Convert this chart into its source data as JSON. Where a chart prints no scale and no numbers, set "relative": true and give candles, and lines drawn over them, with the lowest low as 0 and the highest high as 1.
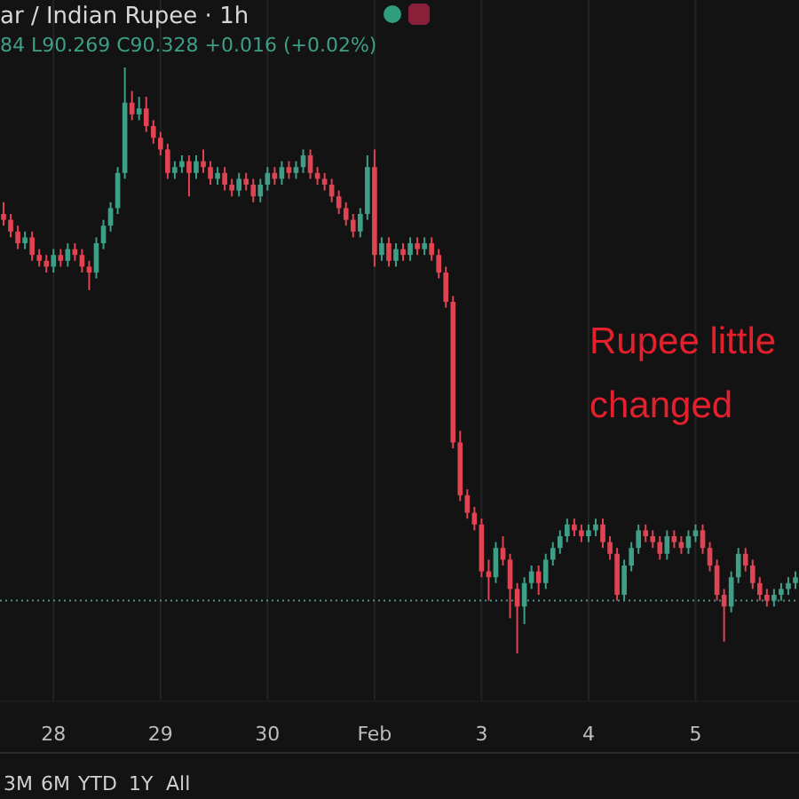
{
  "chart_data": {
    "type": "candlestick",
    "title": "ar / Indian Rupee · 1h",
    "subtitle": "84 L90.269 C90.328 +0.016 (+0.02%)",
    "relative": true,
    "grid": "x",
    "categories": [
      null,
      null,
      null,
      null,
      null,
      null,
      null,
      "28",
      null,
      null,
      null,
      null,
      null,
      null,
      null,
      null,
      null,
      null,
      null,
      null,
      null,
      null,
      "29",
      null,
      null,
      null,
      null,
      null,
      null,
      null,
      null,
      null,
      null,
      null,
      null,
      null,
      null,
      "30",
      null,
      null,
      null,
      null,
      null,
      null,
      null,
      null,
      null,
      null,
      null,
      null,
      null,
      null,
      "Feb",
      null,
      null,
      null,
      null,
      null,
      null,
      null,
      null,
      null,
      null,
      null,
      null,
      null,
      null,
      "3",
      null,
      null,
      null,
      null,
      null,
      null,
      null,
      null,
      null,
      null,
      null,
      null,
      null,
      null,
      "4",
      null,
      null,
      null,
      null,
      null,
      null,
      null,
      null,
      null,
      null,
      null,
      null,
      null,
      null,
      "5",
      null,
      null,
      null,
      null,
      null,
      null,
      null,
      null,
      null,
      null,
      null,
      null,
      null,
      null
    ],
    "ohlc": [
      [
        0.75,
        0.77,
        0.73,
        0.74
      ],
      [
        0.74,
        0.75,
        0.71,
        0.72
      ],
      [
        0.72,
        0.73,
        0.69,
        0.7
      ],
      [
        0.7,
        0.72,
        0.69,
        0.71
      ],
      [
        0.71,
        0.72,
        0.67,
        0.68
      ],
      [
        0.68,
        0.69,
        0.66,
        0.67
      ],
      [
        0.67,
        0.68,
        0.65,
        0.66
      ],
      [
        0.66,
        0.69,
        0.65,
        0.68
      ],
      [
        0.68,
        0.69,
        0.66,
        0.67
      ],
      [
        0.67,
        0.7,
        0.66,
        0.69
      ],
      [
        0.69,
        0.7,
        0.67,
        0.68
      ],
      [
        0.68,
        0.69,
        0.65,
        0.66
      ],
      [
        0.66,
        0.67,
        0.62,
        0.65
      ],
      [
        0.65,
        0.71,
        0.64,
        0.7
      ],
      [
        0.7,
        0.74,
        0.69,
        0.73
      ],
      [
        0.73,
        0.77,
        0.72,
        0.76
      ],
      [
        0.76,
        0.83,
        0.75,
        0.82
      ],
      [
        0.82,
        1.0,
        0.81,
        0.94
      ],
      [
        0.94,
        0.96,
        0.91,
        0.92
      ],
      [
        0.92,
        0.95,
        0.91,
        0.93
      ],
      [
        0.93,
        0.95,
        0.89,
        0.9
      ],
      [
        0.9,
        0.91,
        0.87,
        0.88
      ],
      [
        0.88,
        0.89,
        0.85,
        0.86
      ],
      [
        0.86,
        0.87,
        0.81,
        0.82
      ],
      [
        0.82,
        0.84,
        0.81,
        0.83
      ],
      [
        0.83,
        0.85,
        0.82,
        0.84
      ],
      [
        0.84,
        0.85,
        0.78,
        0.82
      ],
      [
        0.82,
        0.85,
        0.81,
        0.84
      ],
      [
        0.84,
        0.86,
        0.82,
        0.83
      ],
      [
        0.83,
        0.84,
        0.8,
        0.81
      ],
      [
        0.81,
        0.83,
        0.8,
        0.82
      ],
      [
        0.82,
        0.83,
        0.79,
        0.8
      ],
      [
        0.8,
        0.81,
        0.78,
        0.79
      ],
      [
        0.79,
        0.82,
        0.78,
        0.81
      ],
      [
        0.81,
        0.82,
        0.79,
        0.8
      ],
      [
        0.8,
        0.81,
        0.77,
        0.78
      ],
      [
        0.78,
        0.81,
        0.77,
        0.8
      ],
      [
        0.8,
        0.83,
        0.79,
        0.82
      ],
      [
        0.82,
        0.83,
        0.8,
        0.81
      ],
      [
        0.81,
        0.84,
        0.8,
        0.83
      ],
      [
        0.83,
        0.84,
        0.81,
        0.82
      ],
      [
        0.82,
        0.84,
        0.81,
        0.83
      ],
      [
        0.83,
        0.86,
        0.82,
        0.85
      ],
      [
        0.85,
        0.86,
        0.81,
        0.82
      ],
      [
        0.82,
        0.83,
        0.8,
        0.81
      ],
      [
        0.81,
        0.82,
        0.79,
        0.8
      ],
      [
        0.8,
        0.81,
        0.77,
        0.78
      ],
      [
        0.78,
        0.79,
        0.75,
        0.76
      ],
      [
        0.76,
        0.77,
        0.73,
        0.74
      ],
      [
        0.74,
        0.75,
        0.71,
        0.72
      ],
      [
        0.72,
        0.76,
        0.71,
        0.75
      ],
      [
        0.75,
        0.85,
        0.74,
        0.83
      ],
      [
        0.83,
        0.86,
        0.66,
        0.68
      ],
      [
        0.68,
        0.71,
        0.67,
        0.7
      ],
      [
        0.7,
        0.71,
        0.66,
        0.67
      ],
      [
        0.67,
        0.7,
        0.66,
        0.69
      ],
      [
        0.69,
        0.7,
        0.67,
        0.68
      ],
      [
        0.68,
        0.71,
        0.67,
        0.7
      ],
      [
        0.7,
        0.71,
        0.68,
        0.69
      ],
      [
        0.69,
        0.71,
        0.68,
        0.7
      ],
      [
        0.7,
        0.71,
        0.67,
        0.68
      ],
      [
        0.68,
        0.69,
        0.64,
        0.65
      ],
      [
        0.65,
        0.66,
        0.59,
        0.6
      ],
      [
        0.6,
        0.61,
        0.35,
        0.36
      ],
      [
        0.36,
        0.38,
        0.26,
        0.27
      ],
      [
        0.27,
        0.28,
        0.23,
        0.24
      ],
      [
        0.24,
        0.25,
        0.21,
        0.22
      ],
      [
        0.22,
        0.23,
        0.13,
        0.14
      ],
      [
        0.14,
        0.16,
        0.09,
        0.13
      ],
      [
        0.13,
        0.19,
        0.12,
        0.18
      ],
      [
        0.18,
        0.2,
        0.15,
        0.16
      ],
      [
        0.16,
        0.17,
        0.06,
        0.11
      ],
      [
        0.11,
        0.12,
        0.0,
        0.08
      ],
      [
        0.08,
        0.13,
        0.05,
        0.12
      ],
      [
        0.12,
        0.15,
        0.11,
        0.14
      ],
      [
        0.14,
        0.15,
        0.1,
        0.12
      ],
      [
        0.12,
        0.17,
        0.11,
        0.16
      ],
      [
        0.16,
        0.19,
        0.15,
        0.18
      ],
      [
        0.18,
        0.21,
        0.17,
        0.2
      ],
      [
        0.2,
        0.23,
        0.19,
        0.22
      ],
      [
        0.22,
        0.23,
        0.2,
        0.21
      ],
      [
        0.21,
        0.22,
        0.19,
        0.2
      ],
      [
        0.2,
        0.22,
        0.19,
        0.21
      ],
      [
        0.21,
        0.23,
        0.2,
        0.22
      ],
      [
        0.22,
        0.23,
        0.18,
        0.19
      ],
      [
        0.19,
        0.2,
        0.16,
        0.17
      ],
      [
        0.17,
        0.18,
        0.09,
        0.1
      ],
      [
        0.1,
        0.16,
        0.09,
        0.15
      ],
      [
        0.15,
        0.19,
        0.14,
        0.18
      ],
      [
        0.18,
        0.22,
        0.17,
        0.21
      ],
      [
        0.21,
        0.22,
        0.19,
        0.2
      ],
      [
        0.2,
        0.21,
        0.18,
        0.19
      ],
      [
        0.19,
        0.2,
        0.16,
        0.17
      ],
      [
        0.17,
        0.21,
        0.16,
        0.2
      ],
      [
        0.2,
        0.21,
        0.18,
        0.19
      ],
      [
        0.19,
        0.2,
        0.17,
        0.18
      ],
      [
        0.18,
        0.21,
        0.17,
        0.2
      ],
      [
        0.2,
        0.22,
        0.19,
        0.21
      ],
      [
        0.21,
        0.22,
        0.17,
        0.18
      ],
      [
        0.18,
        0.19,
        0.14,
        0.15
      ],
      [
        0.15,
        0.16,
        0.09,
        0.1
      ],
      [
        0.1,
        0.11,
        0.02,
        0.08
      ],
      [
        0.08,
        0.14,
        0.07,
        0.13
      ],
      [
        0.13,
        0.18,
        0.12,
        0.17
      ],
      [
        0.17,
        0.18,
        0.14,
        0.15
      ],
      [
        0.15,
        0.16,
        0.11,
        0.12
      ],
      [
        0.12,
        0.13,
        0.09,
        0.1
      ],
      [
        0.1,
        0.11,
        0.08,
        0.09
      ],
      [
        0.09,
        0.11,
        0.08,
        0.1
      ],
      [
        0.1,
        0.12,
        0.09,
        0.11
      ],
      [
        0.11,
        0.13,
        0.1,
        0.12
      ],
      [
        0.12,
        0.14,
        0.11,
        0.13
      ]
    ],
    "ref_lines": [
      {
        "axis": "y",
        "value": 0.09,
        "line_style": "dotted",
        "color": "#4f8f86"
      }
    ],
    "annotations": [
      "Rupee little changed",
      "3M",
      "6M",
      "YTD",
      "1Y",
      "All"
    ]
  }
}
